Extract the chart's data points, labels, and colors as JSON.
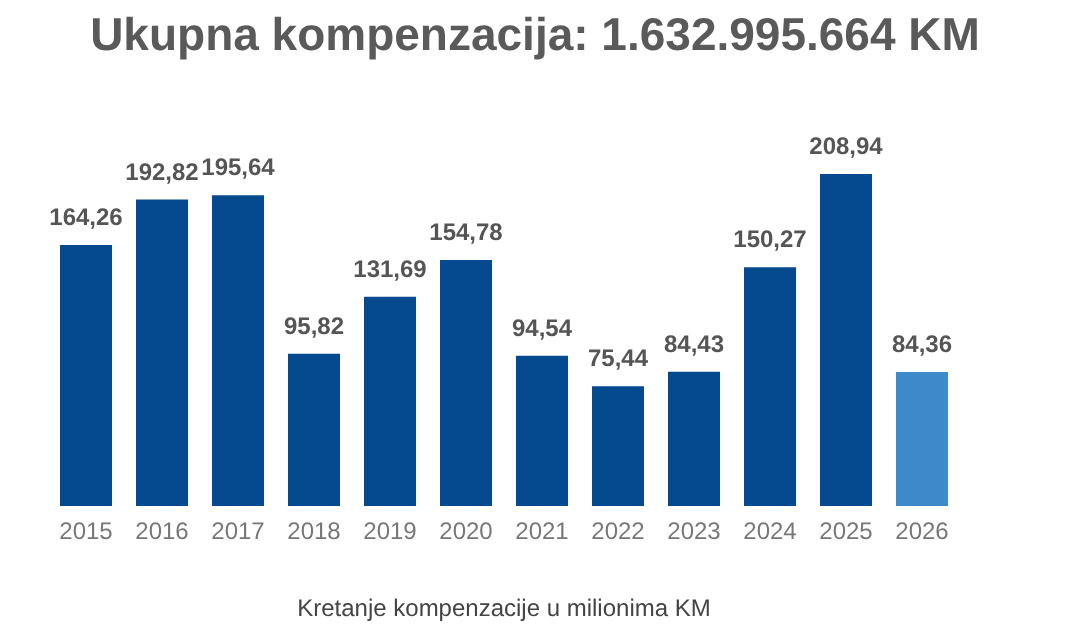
{
  "chart_data": {
    "type": "bar",
    "title": "Ukupna kompenzacija: 1.632.995.664 KM",
    "xlabel": "Kretanje kompenzacije u milionima KM",
    "categories": [
      "2015",
      "2016",
      "2017",
      "2018",
      "2019",
      "2020",
      "2021",
      "2022",
      "2023",
      "2024",
      "2025",
      "2026"
    ],
    "values": [
      164.26,
      192.82,
      195.64,
      95.82,
      131.69,
      154.78,
      94.54,
      75.44,
      84.43,
      150.27,
      208.94,
      84.36
    ],
    "value_labels": [
      "164,26",
      "192,82",
      "195,64",
      "95,82",
      "131,69",
      "154,78",
      "94,54",
      "75,44",
      "84,43",
      "150,27",
      "208,94",
      "84,36"
    ],
    "colors": [
      "#054a8f",
      "#054a8f",
      "#054a8f",
      "#054a8f",
      "#054a8f",
      "#054a8f",
      "#054a8f",
      "#054a8f",
      "#054a8f",
      "#054a8f",
      "#054a8f",
      "#3d89c9"
    ],
    "grid": false,
    "legend": false
  }
}
